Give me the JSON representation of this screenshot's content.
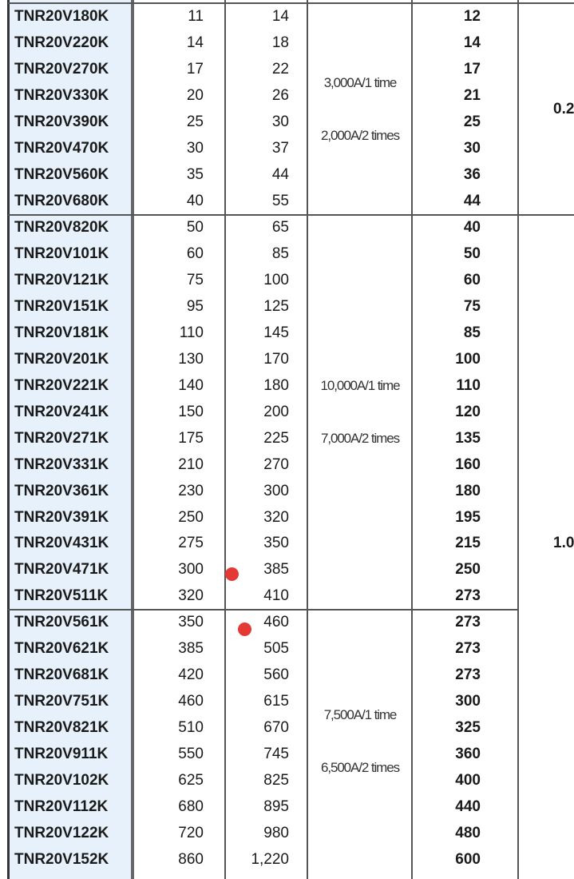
{
  "groups": [
    {
      "rows": [
        [
          "TNR20V180K",
          "11",
          "14",
          "12"
        ],
        [
          "TNR20V220K",
          "14",
          "18",
          "14"
        ],
        [
          "TNR20V270K",
          "17",
          "22",
          "17"
        ],
        [
          "TNR20V330K",
          "20",
          "26",
          "21"
        ],
        [
          "TNR20V390K",
          "25",
          "30",
          "25"
        ],
        [
          "TNR20V470K",
          "30",
          "37",
          "30"
        ],
        [
          "TNR20V560K",
          "35",
          "44",
          "36"
        ],
        [
          "TNR20V680K",
          "40",
          "55",
          "44"
        ]
      ],
      "surge": [
        "3,000A/1 time",
        "2,000A/2 times"
      ]
    },
    {
      "rows": [
        [
          "TNR20V820K",
          "50",
          "65",
          "40"
        ],
        [
          "TNR20V101K",
          "60",
          "85",
          "50"
        ],
        [
          "TNR20V121K",
          "75",
          "100",
          "60"
        ],
        [
          "TNR20V151K",
          "95",
          "125",
          "75"
        ],
        [
          "TNR20V181K",
          "110",
          "145",
          "85"
        ],
        [
          "TNR20V201K",
          "130",
          "170",
          "100"
        ],
        [
          "TNR20V221K",
          "140",
          "180",
          "110"
        ],
        [
          "TNR20V241K",
          "150",
          "200",
          "120"
        ],
        [
          "TNR20V271K",
          "175",
          "225",
          "135"
        ],
        [
          "TNR20V331K",
          "210",
          "270",
          "160"
        ],
        [
          "TNR20V361K",
          "230",
          "300",
          "180"
        ],
        [
          "TNR20V391K",
          "250",
          "320",
          "195"
        ],
        [
          "TNR20V431K",
          "275",
          "350",
          "215"
        ],
        [
          "TNR20V471K",
          "300",
          "385",
          "250"
        ],
        [
          "TNR20V511K",
          "320",
          "410",
          "273"
        ]
      ],
      "surge": [
        "10,000A/1 time",
        "7,000A/2 times"
      ]
    },
    {
      "rows": [
        [
          "TNR20V561K",
          "350",
          "460",
          "273"
        ],
        [
          "TNR20V621K",
          "385",
          "505",
          "273"
        ],
        [
          "TNR20V681K",
          "420",
          "560",
          "273"
        ],
        [
          "TNR20V751K",
          "460",
          "615",
          "300"
        ],
        [
          "TNR20V821K",
          "510",
          "670",
          "325"
        ],
        [
          "TNR20V911K",
          "550",
          "745",
          "360"
        ],
        [
          "TNR20V102K",
          "625",
          "825",
          "400"
        ],
        [
          "TNR20V112K",
          "680",
          "895",
          "440"
        ],
        [
          "TNR20V122K",
          "720",
          "980",
          "480"
        ],
        [
          "TNR20V152K",
          "860",
          "1,220",
          "600"
        ]
      ],
      "surge": [
        "7,500A/1 time",
        "6,500A/2 times"
      ]
    }
  ],
  "col6": [
    "0.2",
    "1.0"
  ]
}
